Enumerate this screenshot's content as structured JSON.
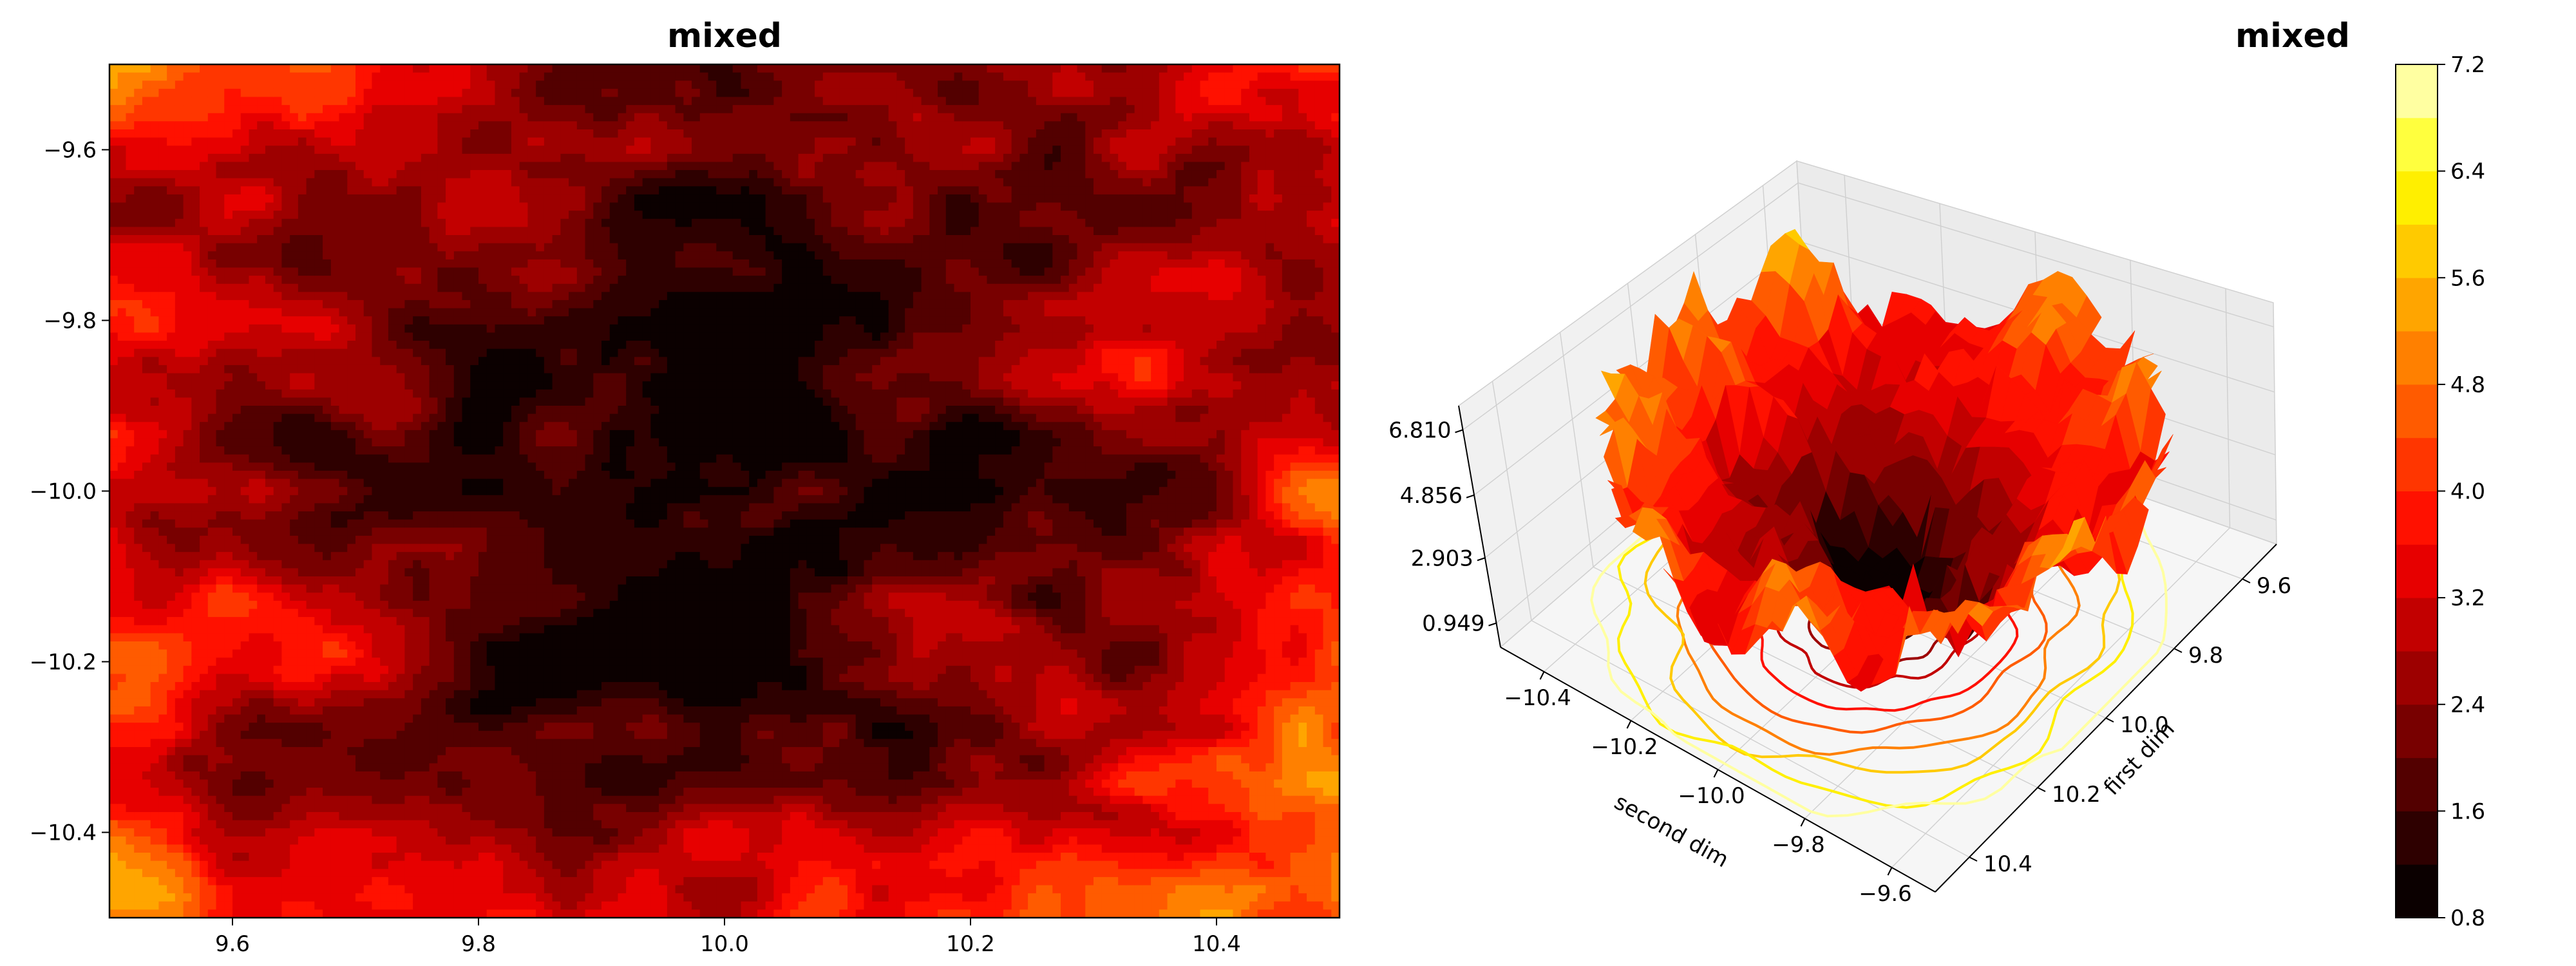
{
  "chart_data": [
    {
      "type": "heatmap",
      "subtype": "filled-contour",
      "title": "mixed",
      "xlim": [
        9.5,
        10.5
      ],
      "ylim": [
        -10.5,
        -9.5
      ],
      "x_ticks": [
        9.6,
        9.8,
        10.0,
        10.2,
        10.4
      ],
      "x_tick_labels": [
        "9.6",
        "9.8",
        "10.0",
        "10.2",
        "10.4"
      ],
      "y_ticks": [
        -9.6,
        -9.8,
        -10.0,
        -10.2,
        -10.4
      ],
      "y_tick_labels": [
        "−9.6",
        "−9.8",
        "−10.0",
        "−10.2",
        "−10.4"
      ],
      "xlabel": "",
      "ylabel": "",
      "colormap": "hot",
      "pattern": "noisy radial bowl: minimum near (10.0, -10.0), rising outward",
      "z_min_at": [
        10.0,
        -10.0
      ]
    },
    {
      "type": "surface3d",
      "title": "mixed",
      "xlabel": "second dim",
      "ylabel": "first dim",
      "x_ticks": [
        -10.4,
        -10.2,
        -10.0,
        -9.8,
        -9.6
      ],
      "x_tick_labels": [
        "−10.4",
        "−10.2",
        "−10.0",
        "−9.8",
        "−9.6"
      ],
      "y_ticks": [
        9.6,
        9.8,
        10.0,
        10.2,
        10.4
      ],
      "y_tick_labels": [
        "9.6",
        "9.8",
        "10.0",
        "10.2",
        "10.4"
      ],
      "z_ticks": [
        0.949,
        2.903,
        4.856,
        6.81
      ],
      "z_tick_labels": [
        "0.949",
        "2.903",
        "4.856",
        "6.810"
      ],
      "zlim": [
        0.949,
        6.81
      ],
      "floor_contours": true,
      "grid": true,
      "colormap": "hot"
    }
  ],
  "colorbar": {
    "range": [
      0.8,
      7.2
    ],
    "levels": 16,
    "ticks": [
      0.8,
      1.6,
      2.4,
      3.2,
      4.0,
      4.8,
      5.6,
      6.4,
      7.2
    ],
    "tick_labels": [
      "0.8",
      "1.6",
      "2.4",
      "3.2",
      "4.0",
      "4.8",
      "5.6",
      "6.4",
      "7.2"
    ],
    "colors": [
      "#0b0000",
      "#2e0000",
      "#530000",
      "#780000",
      "#9d0000",
      "#c20000",
      "#e70000",
      "#ff1100",
      "#ff3600",
      "#ff5b00",
      "#ff8000",
      "#ffa500",
      "#ffca00",
      "#ffef00",
      "#ffff3e",
      "#ffffa1"
    ]
  }
}
